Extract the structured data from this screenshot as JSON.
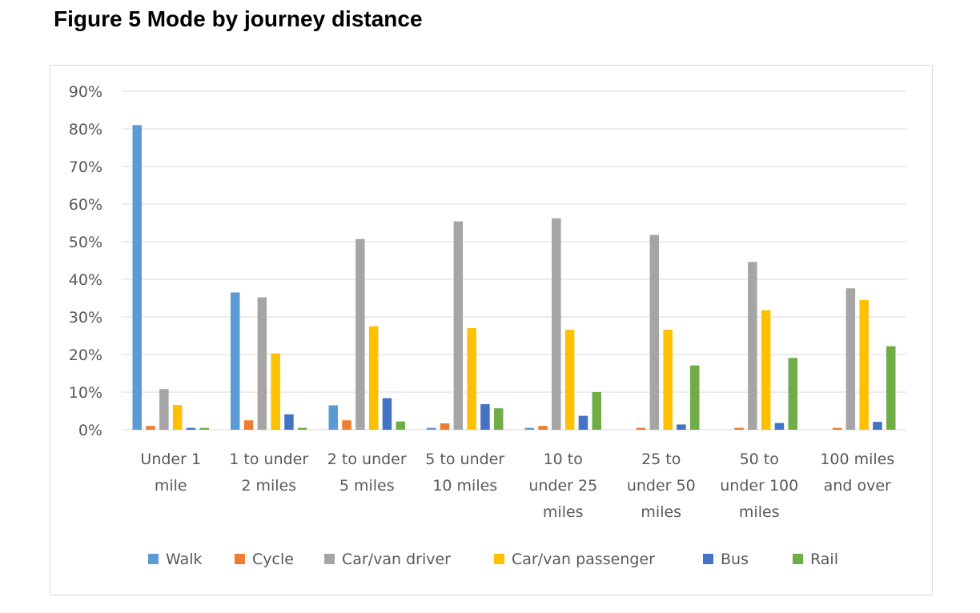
{
  "title": "Figure 5 Mode by journey distance",
  "chart_data": {
    "type": "bar",
    "title": "Figure 5 Mode by journey distance",
    "xlabel": "",
    "ylabel": "",
    "ylim": [
      0,
      90
    ],
    "ytick_labels": [
      "0%",
      "10%",
      "20%",
      "30%",
      "40%",
      "50%",
      "60%",
      "70%",
      "80%",
      "90%"
    ],
    "grid": true,
    "legend_position": "bottom",
    "categories": [
      [
        "Under 1",
        "mile"
      ],
      [
        "1 to under",
        "2 miles"
      ],
      [
        "2 to under",
        "5 miles"
      ],
      [
        "5 to under",
        "10 miles"
      ],
      [
        "10 to",
        "under 25",
        "miles"
      ],
      [
        "25 to",
        "under 50",
        "miles"
      ],
      [
        "50 to",
        "under 100",
        "miles"
      ],
      [
        "100 miles",
        "and over"
      ]
    ],
    "series": [
      {
        "name": "Walk",
        "color": "#5b9bd5",
        "values": [
          81,
          36.5,
          6.5,
          0.5,
          0.5,
          0,
          0,
          0
        ]
      },
      {
        "name": "Cycle",
        "color": "#ed7d31",
        "values": [
          1,
          2.5,
          2.5,
          1.7,
          1,
          0.5,
          0.5,
          0.5
        ]
      },
      {
        "name": "Car/van driver",
        "color": "#a5a5a5",
        "values": [
          10.8,
          35.2,
          50.7,
          55.4,
          56.2,
          51.8,
          44.6,
          37.6
        ]
      },
      {
        "name": "Car/van passenger",
        "color": "#ffc000",
        "values": [
          6.6,
          20.3,
          27.5,
          27,
          26.6,
          26.6,
          31.8,
          34.5
        ]
      },
      {
        "name": "Bus",
        "color": "#4472c4",
        "values": [
          0.5,
          4.1,
          8.4,
          6.8,
          3.7,
          1.4,
          1.8,
          2.1
        ]
      },
      {
        "name": "Rail",
        "color": "#70ad47",
        "values": [
          0.5,
          0.5,
          2.2,
          5.7,
          10,
          17.1,
          19.1,
          22.2
        ]
      }
    ]
  }
}
